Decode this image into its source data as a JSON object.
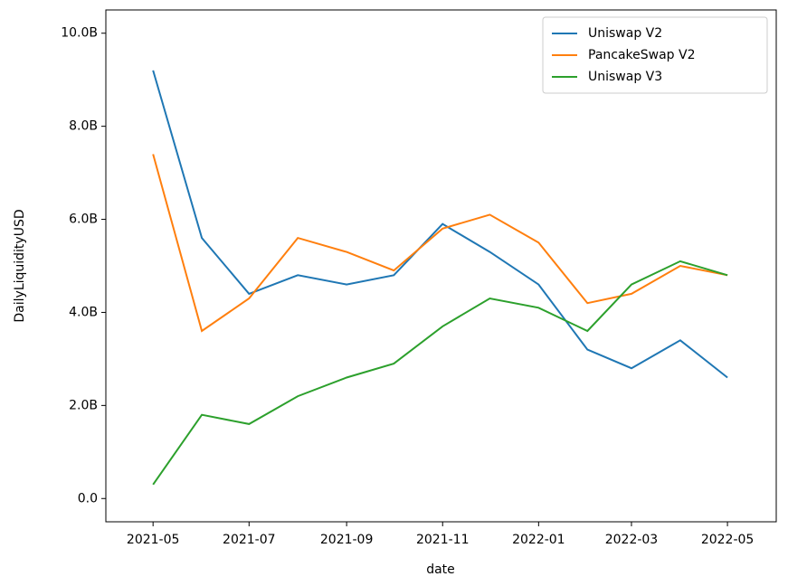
{
  "chart_data": {
    "type": "line",
    "x_label": "date",
    "y_label": "DailyLiquidityUSD",
    "x": [
      "2021-05",
      "2021-06",
      "2021-07",
      "2021-08",
      "2021-09",
      "2021-10",
      "2021-11",
      "2021-12",
      "2022-01",
      "2022-02",
      "2022-03",
      "2022-04",
      "2022-05"
    ],
    "series": [
      {
        "name": "Uniswap V2",
        "color": "#1f77b4",
        "values": [
          9.2,
          5.6,
          4.4,
          4.8,
          4.6,
          4.8,
          5.9,
          5.3,
          4.6,
          3.2,
          2.8,
          3.4,
          2.6
        ]
      },
      {
        "name": "PancakeSwap V2",
        "color": "#ff7f0e",
        "values": [
          7.4,
          3.6,
          4.3,
          5.6,
          5.3,
          4.9,
          5.8,
          6.1,
          5.5,
          4.2,
          4.4,
          5.0,
          4.8
        ]
      },
      {
        "name": "Uniswap V3",
        "color": "#2ca02c",
        "values": [
          0.3,
          1.8,
          1.6,
          2.2,
          2.6,
          2.9,
          3.7,
          4.3,
          4.1,
          3.6,
          4.6,
          5.1,
          4.8
        ]
      }
    ],
    "xlim": [
      "2021-04",
      "2022-06"
    ],
    "xticks": [
      "2021-05",
      "2021-07",
      "2021-09",
      "2021-11",
      "2022-01",
      "2022-03",
      "2022-05"
    ],
    "ylim": [
      -0.5,
      10.5
    ],
    "yticks": [
      {
        "value": 0,
        "label": "0.0"
      },
      {
        "value": 2,
        "label": "2.0B"
      },
      {
        "value": 4,
        "label": "4.0B"
      },
      {
        "value": 6,
        "label": "6.0B"
      },
      {
        "value": 8,
        "label": "8.0B"
      },
      {
        "value": 10,
        "label": "10.0B"
      }
    ],
    "legend": "upper right",
    "grid": false
  }
}
